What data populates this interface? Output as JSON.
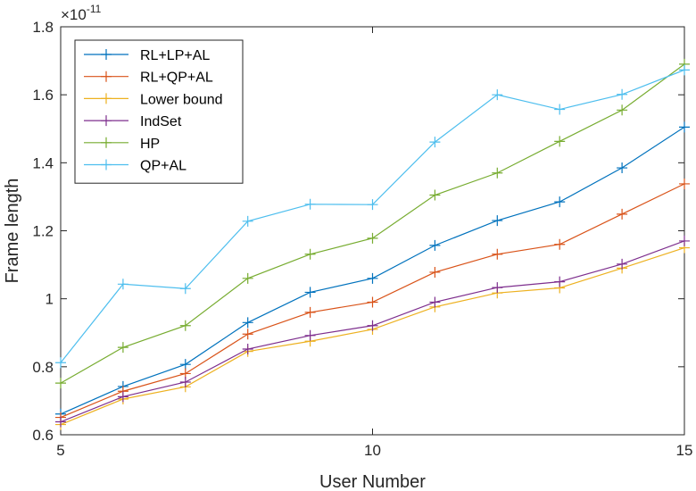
{
  "chart_data": {
    "type": "line",
    "xlabel": "User Number",
    "ylabel": "Frame length",
    "exponent_base": "×10",
    "exponent_power": "-11",
    "xlim": [
      5,
      15
    ],
    "ylim": [
      0.6,
      1.8
    ],
    "x_ticks": [
      5,
      10,
      15
    ],
    "y_ticks": [
      0.6,
      0.8,
      1,
      1.2,
      1.4,
      1.6,
      1.8
    ],
    "x_tick_labels": [
      "5",
      "10",
      "15"
    ],
    "y_tick_labels": [
      "0.6",
      "0.8",
      "1",
      "1.2",
      "1.4",
      "1.6",
      "1.8"
    ],
    "grid": false,
    "legend_position": "top-left",
    "marker": "plus",
    "x": [
      5,
      6,
      7,
      8,
      9,
      10,
      11,
      12,
      13,
      14,
      15
    ],
    "series": [
      {
        "name": "RL+LP+AL",
        "color": "#0072BD",
        "values": [
          0.661,
          0.742,
          0.807,
          0.93,
          1.019,
          1.06,
          1.157,
          1.23,
          1.285,
          1.385,
          1.505
        ]
      },
      {
        "name": "RL+QP+AL",
        "color": "#D95319",
        "values": [
          0.651,
          0.728,
          0.78,
          0.896,
          0.96,
          0.99,
          1.078,
          1.131,
          1.16,
          1.249,
          1.338
        ]
      },
      {
        "name": "Lower bound",
        "color": "#EDB120",
        "values": [
          0.63,
          0.705,
          0.741,
          0.845,
          0.875,
          0.91,
          0.976,
          1.017,
          1.032,
          1.09,
          1.15
        ]
      },
      {
        "name": "IndSet",
        "color": "#7E2F8E",
        "values": [
          0.638,
          0.712,
          0.755,
          0.852,
          0.892,
          0.921,
          0.99,
          1.033,
          1.05,
          1.102,
          1.17
        ]
      },
      {
        "name": "HP",
        "color": "#77AC30",
        "values": [
          0.752,
          0.857,
          0.921,
          1.06,
          1.131,
          1.178,
          1.305,
          1.37,
          1.463,
          1.555,
          1.69
        ]
      },
      {
        "name": "QP+AL",
        "color": "#4DBEEE",
        "values": [
          0.812,
          1.043,
          1.03,
          1.228,
          1.278,
          1.277,
          1.461,
          1.6,
          1.557,
          1.601,
          1.673
        ]
      }
    ]
  }
}
